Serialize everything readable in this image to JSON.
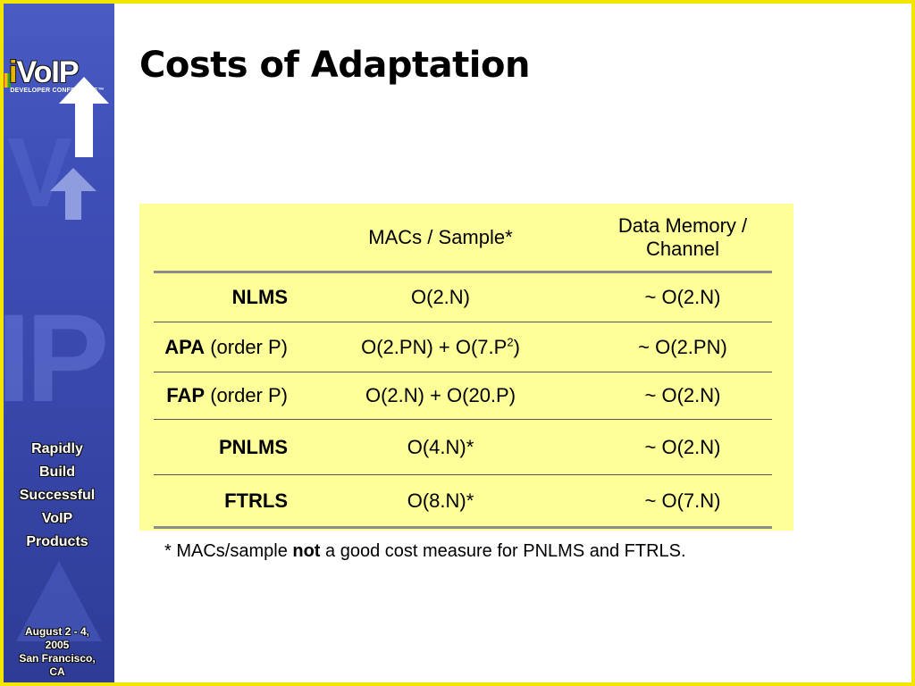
{
  "sidebar": {
    "logo": {
      "brand_i": "i",
      "brand_rest": "VoIP",
      "conference": "DEVELOPER CONFERENCE™"
    },
    "tagline": [
      "Rapidly",
      "Build",
      "Successful",
      "VoIP",
      "Products"
    ],
    "event": [
      "August 2 - 4,",
      "2005",
      "San Francisco,",
      "CA"
    ]
  },
  "slide": {
    "title": "Costs of Adaptation"
  },
  "table": {
    "header": {
      "col1": "",
      "col2": "MACs / Sample*",
      "col3_line1": "Data Memory /",
      "col3_line2": "Channel"
    },
    "rows": [
      {
        "name": "NLMS",
        "qualifier": "",
        "macs": "O(2.N)",
        "macs_sup": "",
        "macs_tail": "",
        "memory": "~ O(2.N)"
      },
      {
        "name": "APA",
        "qualifier": " (order P)",
        "macs": "O(2.PN) + O(7.P",
        "macs_sup": "2",
        "macs_tail": ")",
        "memory": "~ O(2.PN)"
      },
      {
        "name": "FAP",
        "qualifier": " (order P)",
        "macs": "O(2.N) + O(20.P)",
        "macs_sup": "",
        "macs_tail": "",
        "memory": "~ O(2.N)"
      },
      {
        "name": "PNLMS",
        "qualifier": "",
        "macs": "O(4.N)*",
        "macs_sup": "",
        "macs_tail": "",
        "memory": "~ O(2.N)"
      },
      {
        "name": "FTRLS",
        "qualifier": "",
        "macs": "O(8.N)*",
        "macs_sup": "",
        "macs_tail": "",
        "memory": "~ O(7.N)"
      }
    ]
  },
  "footnote": {
    "before": "* MACs/sample ",
    "emphasis": "not",
    "after": " a good cost measure for PNLMS and FTRLS."
  },
  "colors": {
    "border": "#f2e600",
    "table_background": "#ffff99",
    "sidebar": "#3e4fb8"
  }
}
